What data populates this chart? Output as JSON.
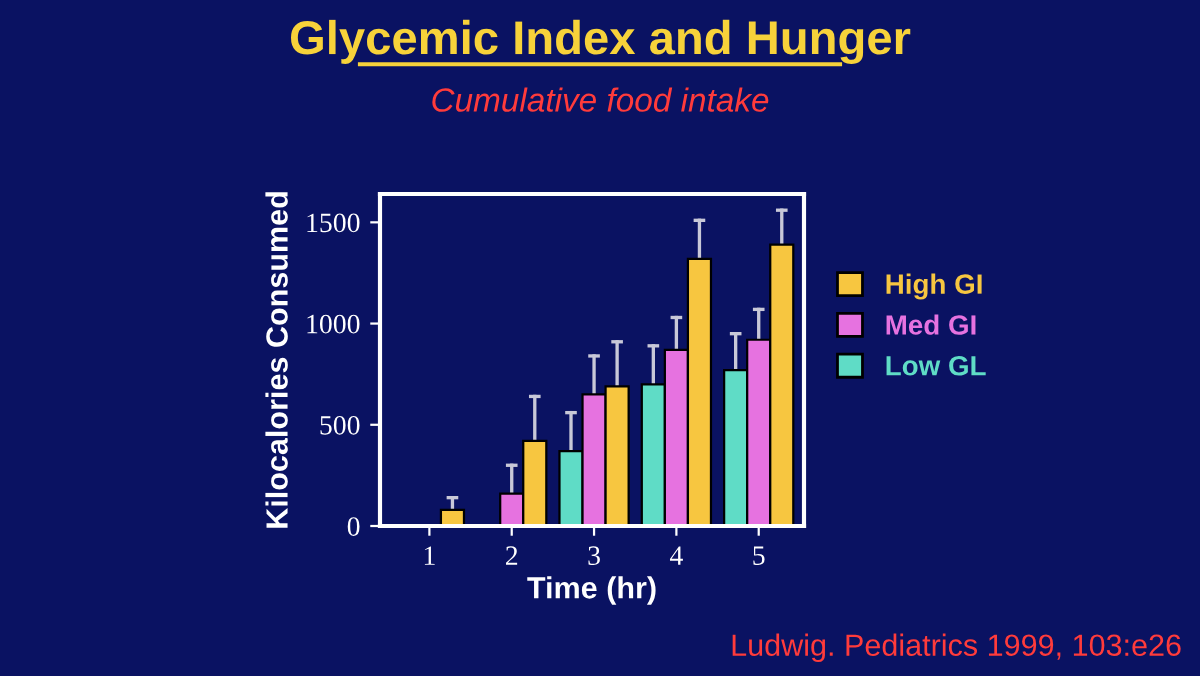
{
  "chart_data": {
    "type": "bar",
    "title": "Glycemic Index and Hunger",
    "subtitle": "Cumulative food intake",
    "xlabel": "Time (hr)",
    "ylabel": "Kilocalories Consumed",
    "categories": [
      "1",
      "2",
      "3",
      "4",
      "5"
    ],
    "series": [
      {
        "name": "Low GL",
        "color": "#5fdcc6",
        "values": [
          null,
          null,
          370,
          700,
          770
        ],
        "errors": [
          null,
          null,
          [
            370,
            560
          ],
          [
            700,
            890
          ],
          [
            770,
            950
          ]
        ]
      },
      {
        "name": "Med GI",
        "color": "#e672e0",
        "values": [
          null,
          160,
          650,
          870,
          920
        ],
        "errors": [
          null,
          [
            160,
            300
          ],
          [
            650,
            840
          ],
          [
            870,
            1030
          ],
          [
            920,
            1070
          ]
        ]
      },
      {
        "name": "High GI",
        "color": "#f7c640",
        "values": [
          80,
          420,
          690,
          1320,
          1390
        ],
        "errors": [
          [
            80,
            140
          ],
          [
            420,
            640
          ],
          [
            690,
            910
          ],
          [
            1320,
            1510
          ],
          [
            1390,
            1560
          ]
        ]
      }
    ],
    "ylim": [
      0,
      1640
    ],
    "yticks": [
      0,
      500,
      1000,
      1500
    ],
    "grid": false,
    "legend": "right",
    "annotations": [
      "Ludwig. Pediatrics 1999, 103:e26"
    ]
  }
}
